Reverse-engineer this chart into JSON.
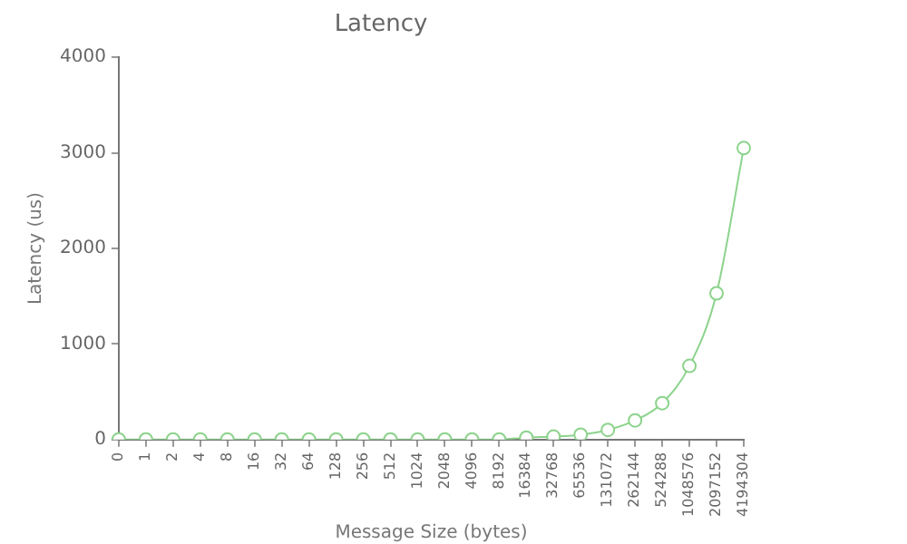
{
  "chart_data": {
    "type": "line",
    "title": "Latency",
    "xlabel": "Message Size (bytes)",
    "ylabel": "Latency (us)",
    "categories": [
      "0",
      "1",
      "2",
      "4",
      "8",
      "16",
      "32",
      "64",
      "128",
      "256",
      "512",
      "1024",
      "2048",
      "4096",
      "8192",
      "16384",
      "32768",
      "65536",
      "131072",
      "262144",
      "524288",
      "1048576",
      "2097152",
      "4194304"
    ],
    "series": [
      {
        "color": "#8cd38c",
        "values": [
          0,
          0,
          0,
          0,
          0,
          0,
          0,
          0,
          0,
          0,
          0,
          0,
          0,
          0,
          0,
          20,
          30,
          50,
          100,
          200,
          380,
          770,
          1530,
          3050
        ]
      }
    ],
    "ylim": [
      0,
      4000
    ],
    "yticks": [
      0,
      1000,
      2000,
      3000,
      4000
    ],
    "grid": false,
    "legend": false,
    "marker": "circle",
    "line_style": "solid"
  }
}
